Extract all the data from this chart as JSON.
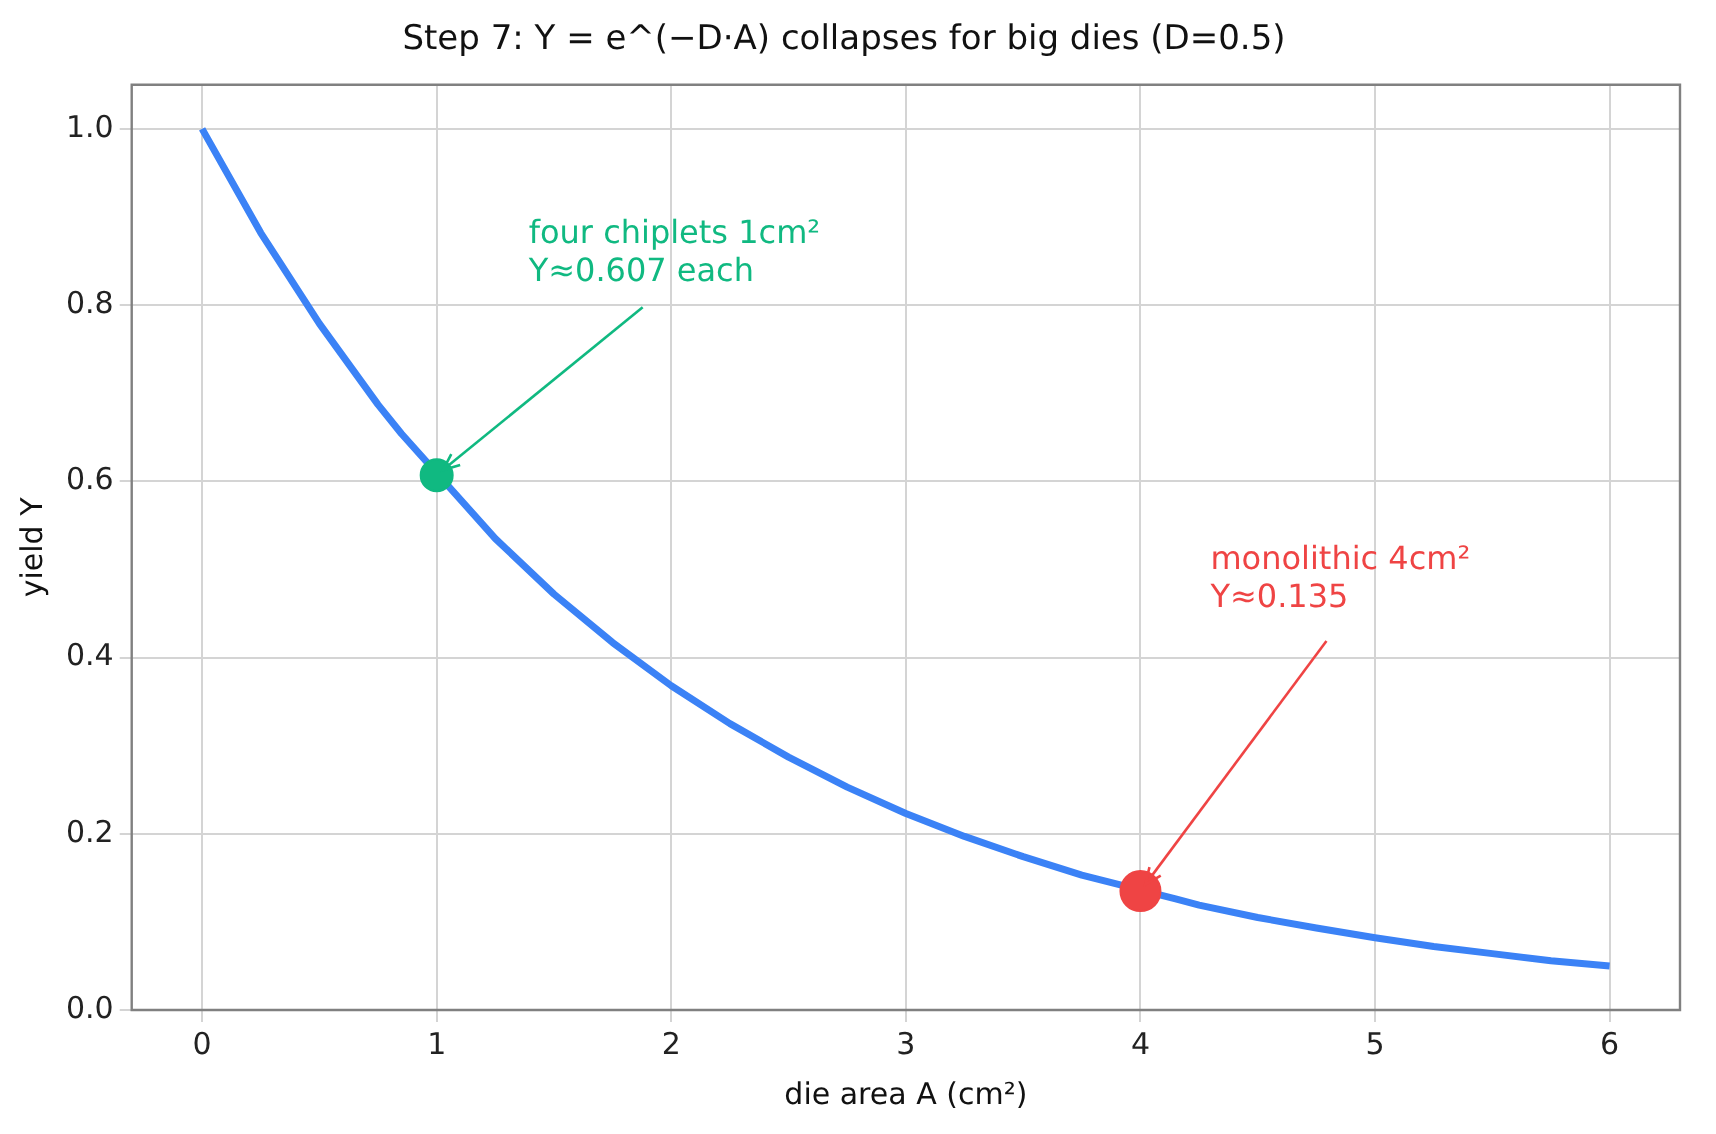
{
  "chart_data": {
    "type": "line",
    "title": "Step 7: Y = e^(−D·A) collapses for big dies (D=0.5)",
    "xlabel": "die area A (cm²)",
    "ylabel": "yield Y",
    "xlim": [
      -0.3,
      6.3
    ],
    "xticks": [
      0,
      1,
      2,
      3,
      4,
      5,
      6
    ],
    "ylim": [
      0,
      1.05
    ],
    "yticks": [
      {
        "value": 0,
        "label": "0.0"
      },
      0.2,
      0.4,
      0.6,
      0.8,
      {
        "value": 1,
        "label": "1.0"
      }
    ],
    "grid": true,
    "legend": false,
    "marker": "none",
    "line_style": "solid",
    "series": [
      {
        "type": "line",
        "color": "#3b82f6",
        "x": [
          0,
          0.25,
          0.5,
          0.75,
          0.85,
          1.25,
          1.5,
          1.75,
          2,
          2.25,
          2.5,
          2.75,
          3,
          3.25,
          3.5,
          3.75,
          4.15,
          4.25,
          4.5,
          4.75,
          5,
          5.25,
          5.5,
          5.75,
          6
        ],
        "values": [
          1,
          0.882,
          0.779,
          0.687,
          0.654,
          0.535,
          0.472,
          0.417,
          0.368,
          0.325,
          0.287,
          0.253,
          0.223,
          0.197,
          0.174,
          0.153,
          0.126,
          0.119,
          0.105,
          0.093,
          0.082,
          0.072,
          0.064,
          0.056,
          0.05
        ]
      },
      {
        "type": "scatter",
        "color": "#10b981",
        "marker": "circle",
        "x": [
          1
        ],
        "values": [
          0.607
        ]
      },
      {
        "type": "scatter",
        "color": "#ef4444",
        "marker": "circle",
        "x": [
          4
        ],
        "values": [
          0.135
        ]
      }
    ],
    "annotations": [
      {
        "text": "four chiplets 1cm²\nY≈0.607 each",
        "x": 1,
        "y": 0.607
      },
      {
        "text": "monolithic 4cm²\nY≈0.135",
        "x": 4,
        "y": 0.135
      }
    ]
  }
}
